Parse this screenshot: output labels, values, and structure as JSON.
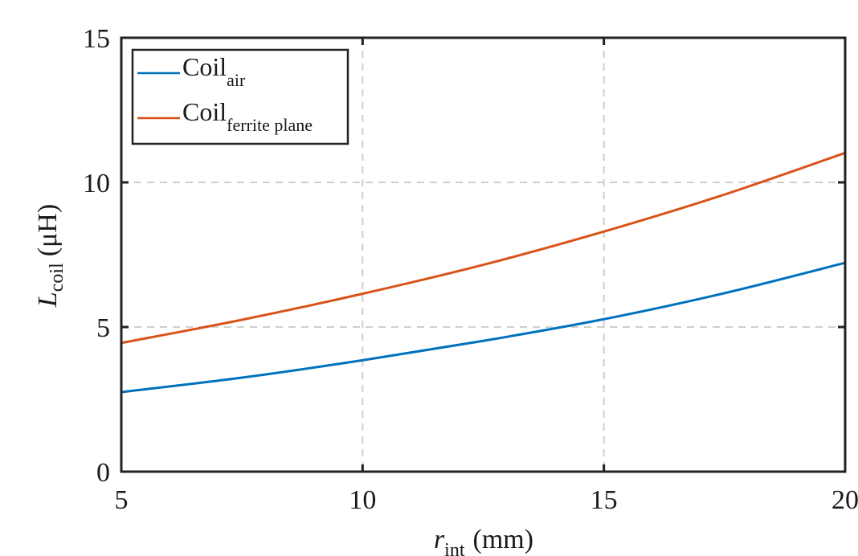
{
  "chart_data": {
    "type": "line",
    "x_label": {
      "main": "r",
      "sub": "int",
      "unit": "(mm)"
    },
    "y_label": {
      "main": "L",
      "sub": "coil",
      "unit": "(μH)"
    },
    "xlim": [
      5,
      20
    ],
    "ylim": [
      0,
      15
    ],
    "x_ticks": [
      "5",
      "10",
      "15",
      "20"
    ],
    "y_ticks": [
      "0",
      "5",
      "10",
      "15"
    ],
    "grid": true,
    "legend_position": "top-left",
    "x": [
      5,
      7.5,
      10,
      12.5,
      15,
      17.5,
      20
    ],
    "series": [
      {
        "name": "Coil",
        "name_sub": "air",
        "color": "#0072BD",
        "values": [
          2.75,
          3.25,
          3.85,
          4.52,
          5.27,
          6.17,
          7.22
        ]
      },
      {
        "name": "Coil",
        "name_sub": "ferrite plane",
        "color": "#D95319",
        "values": [
          4.45,
          5.25,
          6.15,
          7.15,
          8.3,
          9.58,
          11.02
        ]
      }
    ]
  }
}
